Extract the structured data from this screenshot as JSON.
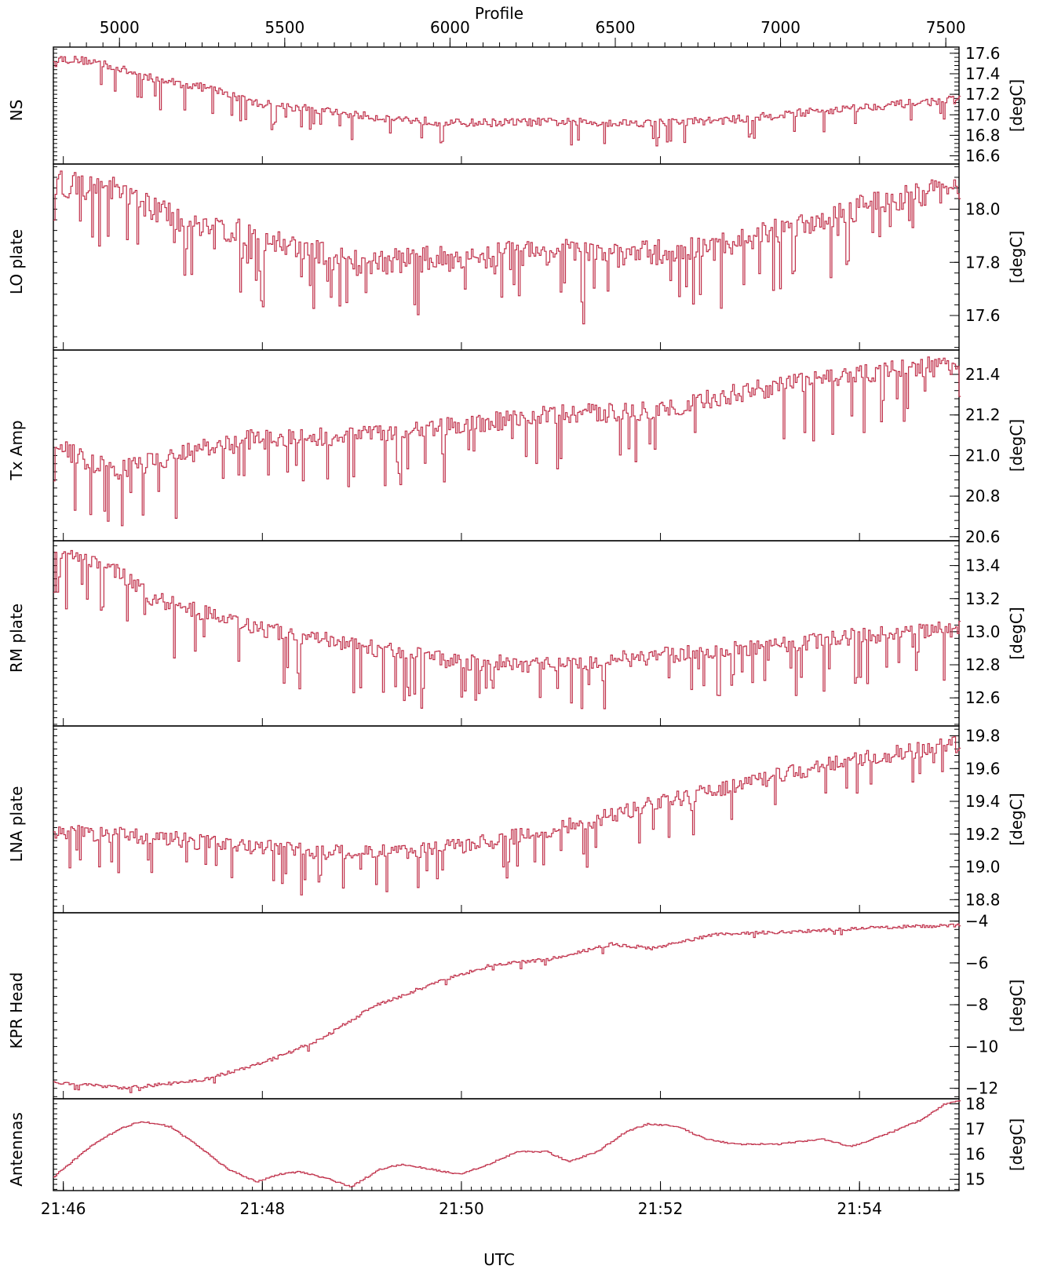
{
  "colors": {
    "series": "#c0304a",
    "axes": "#000000",
    "background": "#ffffff"
  },
  "chart_data": {
    "type": "line",
    "line_style": "step",
    "x_axis_top": {
      "title": "Profile",
      "range": [
        4800,
        7540
      ],
      "ticks": [
        5000,
        5500,
        6000,
        6500,
        7000,
        7500
      ],
      "tick_labels": [
        "5000",
        "5500",
        "6000",
        "6500",
        "7000",
        "7500"
      ]
    },
    "x_axis_bottom": {
      "title": "UTC",
      "range_minutes": [
        0,
        9.1
      ],
      "ticks_minutes": [
        0.1,
        2.1,
        4.1,
        6.1,
        8.1
      ],
      "tick_labels": [
        "21:46",
        "21:48",
        "21:50",
        "21:52",
        "21:54"
      ]
    },
    "panels": [
      {
        "name": "NS",
        "unit": "[degC]",
        "ylim": [
          16.52,
          17.66
        ],
        "ticks": [
          16.6,
          16.8,
          17.0,
          17.2,
          17.4,
          17.6
        ],
        "tick_labels": [
          "16.6",
          "16.8",
          "17.0",
          "17.2",
          "17.4",
          "17.6"
        ],
        "anchors": [
          [
            0,
            17.55
          ],
          [
            0.4,
            17.52
          ],
          [
            1.0,
            17.35
          ],
          [
            1.6,
            17.25
          ],
          [
            2.0,
            17.12
          ],
          [
            2.6,
            17.05
          ],
          [
            3.2,
            16.98
          ],
          [
            4.0,
            16.92
          ],
          [
            5.0,
            16.93
          ],
          [
            6.0,
            16.92
          ],
          [
            6.8,
            16.95
          ],
          [
            7.5,
            17.02
          ],
          [
            8.2,
            17.08
          ],
          [
            9.1,
            17.15
          ]
        ],
        "noise": 0.04,
        "dip_prob": 0.08,
        "dip_depth": 0.28
      },
      {
        "name": "LO plate",
        "unit": "[degC]",
        "ylim": [
          17.47,
          18.17
        ],
        "ticks": [
          17.6,
          17.8,
          18.0
        ],
        "tick_labels": [
          "17.6",
          "17.8",
          "18.0"
        ],
        "anchors": [
          [
            0,
            18.1
          ],
          [
            0.6,
            18.07
          ],
          [
            1.2,
            17.97
          ],
          [
            2.0,
            17.9
          ],
          [
            3.0,
            17.8
          ],
          [
            4.2,
            17.82
          ],
          [
            5.0,
            17.84
          ],
          [
            5.8,
            17.83
          ],
          [
            6.6,
            17.85
          ],
          [
            7.4,
            17.93
          ],
          [
            8.2,
            18.02
          ],
          [
            9.1,
            18.08
          ]
        ],
        "noise": 0.05,
        "dip_prob": 0.13,
        "dip_depth": 0.22
      },
      {
        "name": "Tx Amp",
        "unit": "[degC]",
        "ylim": [
          20.58,
          21.52
        ],
        "ticks": [
          20.6,
          20.8,
          21.0,
          21.2,
          21.4
        ],
        "tick_labels": [
          "20.6",
          "20.8",
          "21.0",
          "21.2",
          "21.4"
        ],
        "anchors": [
          [
            0,
            21.05
          ],
          [
            0.6,
            20.92
          ],
          [
            1.2,
            21.0
          ],
          [
            2.0,
            21.08
          ],
          [
            3.0,
            21.1
          ],
          [
            4.0,
            21.15
          ],
          [
            5.0,
            21.2
          ],
          [
            6.0,
            21.22
          ],
          [
            7.0,
            21.32
          ],
          [
            8.0,
            21.4
          ],
          [
            9.1,
            21.45
          ]
        ],
        "noise": 0.05,
        "dip_prob": 0.12,
        "dip_depth": 0.28
      },
      {
        "name": "RM plate",
        "unit": "[degC]",
        "ylim": [
          12.43,
          13.55
        ],
        "ticks": [
          12.6,
          12.8,
          13.0,
          13.2,
          13.4
        ],
        "tick_labels": [
          "12.6",
          "12.8",
          "13.0",
          "13.2",
          "13.4"
        ],
        "anchors": [
          [
            0,
            13.48
          ],
          [
            0.6,
            13.38
          ],
          [
            1.0,
            13.2
          ],
          [
            1.6,
            13.1
          ],
          [
            2.2,
            13.0
          ],
          [
            3.0,
            12.92
          ],
          [
            4.0,
            12.82
          ],
          [
            5.0,
            12.8
          ],
          [
            6.0,
            12.85
          ],
          [
            7.0,
            12.9
          ],
          [
            8.0,
            12.97
          ],
          [
            9.1,
            13.02
          ]
        ],
        "noise": 0.05,
        "dip_prob": 0.11,
        "dip_depth": 0.3
      },
      {
        "name": "LNA plate",
        "unit": "[degC]",
        "ylim": [
          18.72,
          19.86
        ],
        "ticks": [
          18.8,
          19.0,
          19.2,
          19.4,
          19.6,
          19.8
        ],
        "tick_labels": [
          "18.8",
          "19.0",
          "19.2",
          "19.4",
          "19.6",
          "19.8"
        ],
        "anchors": [
          [
            0,
            19.22
          ],
          [
            1.0,
            19.18
          ],
          [
            2.0,
            19.12
          ],
          [
            3.0,
            19.08
          ],
          [
            4.0,
            19.12
          ],
          [
            5.0,
            19.22
          ],
          [
            6.0,
            19.38
          ],
          [
            7.0,
            19.52
          ],
          [
            8.0,
            19.65
          ],
          [
            9.1,
            19.75
          ]
        ],
        "noise": 0.05,
        "dip_prob": 0.11,
        "dip_depth": 0.25
      },
      {
        "name": "KPR Head",
        "unit": "[degC]",
        "ylim": [
          -12.5,
          -3.6
        ],
        "ticks": [
          -12,
          -10,
          -8,
          -6,
          -4
        ],
        "tick_labels": [
          "−12",
          "−10",
          "−8",
          "−6",
          "−4"
        ],
        "anchors": [
          [
            0,
            -11.7
          ],
          [
            0.7,
            -12.0
          ],
          [
            1.5,
            -11.6
          ],
          [
            2.2,
            -10.6
          ],
          [
            2.7,
            -9.6
          ],
          [
            3.2,
            -8.1
          ],
          [
            3.8,
            -7.0
          ],
          [
            4.4,
            -6.1
          ],
          [
            5.0,
            -5.8
          ],
          [
            5.6,
            -5.1
          ],
          [
            6.0,
            -5.3
          ],
          [
            6.7,
            -4.6
          ],
          [
            7.5,
            -4.5
          ],
          [
            8.3,
            -4.3
          ],
          [
            9.1,
            -4.2
          ]
        ],
        "noise": 0.08,
        "dip_prob": 0.02,
        "dip_depth": 0.3
      },
      {
        "name": "Antennas",
        "unit": "[degC]",
        "ylim": [
          14.55,
          18.2
        ],
        "ticks": [
          15,
          16,
          17,
          18
        ],
        "tick_labels": [
          "15",
          "16",
          "17",
          "18"
        ],
        "anchors": [
          [
            0,
            15.1
          ],
          [
            0.5,
            16.3
          ],
          [
            0.9,
            17.0
          ],
          [
            1.2,
            17.3
          ],
          [
            1.6,
            17.1
          ],
          [
            2.0,
            16.3
          ],
          [
            2.4,
            15.4
          ],
          [
            2.8,
            14.9
          ],
          [
            3.1,
            15.2
          ],
          [
            3.4,
            15.3
          ],
          [
            3.8,
            15.0
          ],
          [
            4.1,
            14.7
          ],
          [
            4.5,
            15.4
          ],
          [
            4.8,
            15.6
          ],
          [
            5.2,
            15.4
          ],
          [
            5.6,
            15.2
          ],
          [
            6.0,
            15.6
          ],
          [
            6.4,
            16.1
          ],
          [
            6.8,
            16.1
          ],
          [
            7.1,
            15.7
          ],
          [
            7.5,
            16.1
          ],
          [
            7.9,
            16.9
          ],
          [
            8.2,
            17.2
          ],
          [
            8.6,
            17.1
          ],
          [
            9.0,
            16.6
          ],
          [
            9.4,
            16.4
          ],
          [
            10.0,
            16.4
          ],
          [
            10.6,
            16.6
          ],
          [
            11.0,
            16.3
          ],
          [
            11.5,
            16.8
          ],
          [
            12.0,
            17.4
          ],
          [
            12.3,
            18.0
          ],
          [
            12.5,
            18.1
          ]
        ],
        "anchor_x_scale": 0.728,
        "noise": 0.03,
        "dip_prob": 0.0,
        "dip_depth": 0.0
      }
    ]
  }
}
